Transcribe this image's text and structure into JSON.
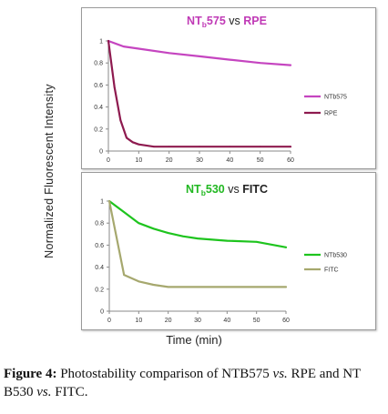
{
  "figure": {
    "ylabel": "Normalized Fluorescent Intensity",
    "xlabel": "Time (min)",
    "caption": {
      "label": "Figure 4:",
      "seg1": " Photostability comparison of NTB575 ",
      "vs1": "vs.",
      "seg2": " RPE and NT B530 ",
      "vs2": "vs.",
      "seg3": " FITC."
    }
  },
  "chart_data": [
    {
      "type": "line",
      "title": {
        "dye_main": "NT",
        "dye_sub": "b",
        "dye_tail": "575",
        "vs": " vs ",
        "ref": "RPE",
        "dye_color": "#c03ab6",
        "ref_color": "#c03ab6"
      },
      "xlabel": "",
      "ylabel": "",
      "xlim": [
        0,
        60
      ],
      "ylim": [
        0,
        1
      ],
      "xticks": [
        "0",
        "10",
        "20",
        "30",
        "40",
        "50",
        "60"
      ],
      "yticks": [
        "0",
        "0.2",
        "0.4",
        "0.6",
        "0.8",
        "1"
      ],
      "grid": false,
      "legend": "right",
      "series": [
        {
          "name": "NTb575",
          "color": "#c545c0",
          "x": [
            0,
            5,
            10,
            20,
            30,
            40,
            50,
            60
          ],
          "y": [
            1.0,
            0.95,
            0.93,
            0.89,
            0.86,
            0.83,
            0.8,
            0.78
          ]
        },
        {
          "name": "RPE",
          "color": "#8e1a4f",
          "x": [
            0,
            2,
            4,
            6,
            8,
            10,
            15,
            20,
            30,
            40,
            50,
            60
          ],
          "y": [
            1.0,
            0.58,
            0.28,
            0.12,
            0.08,
            0.06,
            0.04,
            0.04,
            0.04,
            0.04,
            0.04,
            0.04
          ]
        }
      ]
    },
    {
      "type": "line",
      "title": {
        "dye_main": "NT",
        "dye_sub": "b",
        "dye_tail": "530",
        "vs": " vs ",
        "ref": "FITC",
        "dye_color": "#22b822",
        "ref_color": "#222222"
      },
      "xlabel": "",
      "ylabel": "",
      "xlim": [
        0,
        60
      ],
      "ylim": [
        0,
        1
      ],
      "xticks": [
        "0",
        "10",
        "20",
        "30",
        "40",
        "50",
        "60"
      ],
      "yticks": [
        "0",
        "0.2",
        "0.4",
        "0.6",
        "0.8",
        "1"
      ],
      "grid": false,
      "legend": "right",
      "series": [
        {
          "name": "NTb530",
          "color": "#1ec41e",
          "x": [
            0,
            5,
            10,
            15,
            20,
            25,
            30,
            40,
            50,
            60
          ],
          "y": [
            1.0,
            0.9,
            0.8,
            0.75,
            0.71,
            0.68,
            0.66,
            0.64,
            0.63,
            0.58
          ]
        },
        {
          "name": "FITC",
          "color": "#a6a86e",
          "x": [
            0,
            5,
            10,
            15,
            20,
            30,
            40,
            50,
            60
          ],
          "y": [
            1.0,
            0.33,
            0.27,
            0.24,
            0.22,
            0.22,
            0.22,
            0.22,
            0.22
          ]
        }
      ]
    }
  ]
}
